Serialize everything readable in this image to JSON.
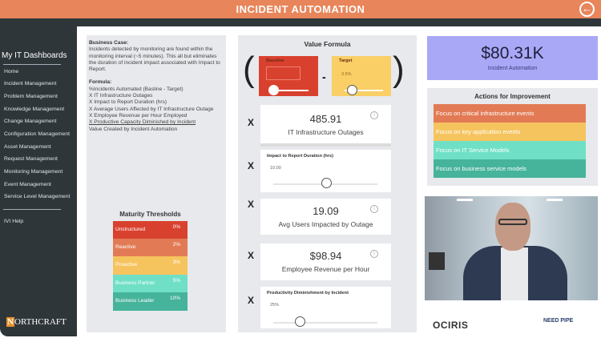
{
  "header": {
    "title": "INCIDENT AUTOMATION",
    "back_icon": "arrow-left-circle-icon"
  },
  "sidebar": {
    "title": "My IT Dashboards",
    "items": [
      "Home",
      "Incident Management",
      "Problem Management",
      "Knowledge Management",
      "Change Management",
      "Configuration Management",
      "Asset Management",
      "Request Management",
      "Monitoring Management",
      "Event Management",
      "Service Level Management"
    ],
    "help": "IVI Help",
    "logo": "NORTHCRAFT"
  },
  "business_case": {
    "heading": "Business Case:",
    "text": "Incidents detected by monitoring are found within the monitoring interval (~5 minutes). This all but eliminates the duration of incident impact associated with Impact to Report.",
    "formula_heading": "Formula:",
    "formula_lines": [
      "%Incidents Automated (Basline - Target)",
      "X IT Infrastructure Outages",
      "X Impact to Report Duration (hrs)",
      "X Average Users Affected by IT Infrastructure Outage",
      "X Employee Revenue per Hour Employed",
      "X Productive Capacity Diminished by Incident",
      "Value Created by Incident Automation"
    ]
  },
  "maturity": {
    "title": "Maturity Thresholds",
    "rows": [
      {
        "label": "Unstructured",
        "value": "0%",
        "color": "#d9412f"
      },
      {
        "label": "Reactive",
        "value": "2%",
        "color": "#e27b55"
      },
      {
        "label": "Proactive",
        "value": "3%",
        "color": "#f6c45e"
      },
      {
        "label": "Business Partner",
        "value": "5%",
        "color": "#6fe0c6"
      },
      {
        "label": "Business Leader",
        "value": "10%",
        "color": "#46b39b"
      }
    ]
  },
  "value_formula": {
    "title": "Value Formula",
    "open_paren": "(",
    "close_paren": ")",
    "minus": "-",
    "multiply": "X",
    "baseline": {
      "label": "Baseline",
      "color": "#d9412f",
      "slider_fraction": 0.1
    },
    "target": {
      "label": "Target",
      "value": "3.5%",
      "color": "#f9cf66",
      "slider_fraction": 0.15
    },
    "outages": {
      "value": "485.91",
      "caption": "IT Infrastructure Outages"
    },
    "impact_duration": {
      "label": "Impact to Report Duration (hrs)",
      "value": "10.00",
      "slider_fraction": 0.5
    },
    "avg_users": {
      "value": "19.09",
      "caption": "Avg Users Impacted by Outage"
    },
    "revenue": {
      "value": "$98.94",
      "caption": "Employee Revenue per Hour"
    },
    "productivity": {
      "label": "Productivity Diminishment by Incident",
      "value": "25%",
      "slider_fraction": 0.25
    }
  },
  "kpi": {
    "value": "$80.31K",
    "caption": "Incident Automation",
    "color": "#a9a8f7"
  },
  "actions": {
    "title": "Actions for Improvement",
    "items": [
      {
        "label": "Focus on critical infrastructure events",
        "color": "#e27b55"
      },
      {
        "label": "Focus on key application events",
        "color": "#f6c45e"
      },
      {
        "label": "Focus on IT Service Models",
        "color": "#6fe0c6"
      },
      {
        "label": "Focus on business service models",
        "color": "#46b39b"
      }
    ]
  },
  "logos": {
    "left": "OCIRIS",
    "right": "NEED PIPE"
  }
}
